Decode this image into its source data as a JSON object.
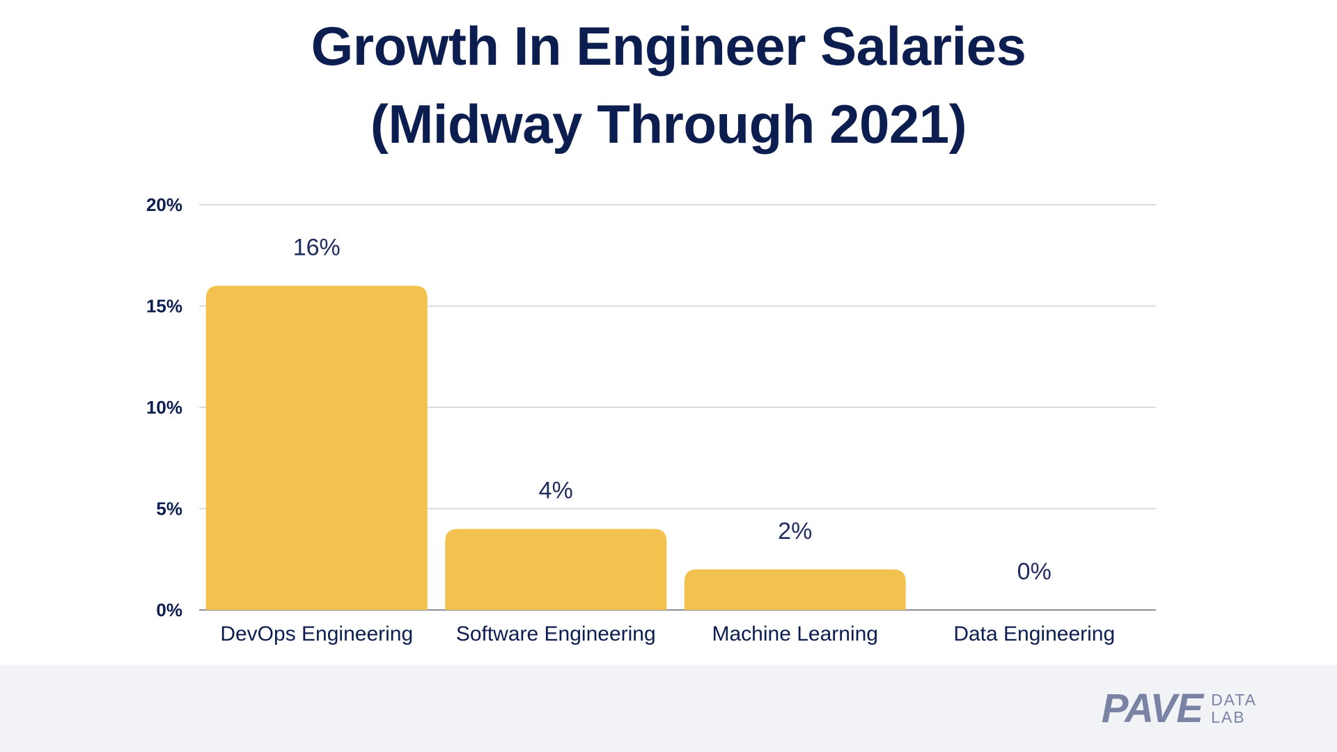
{
  "title_line1": "Growth In Engineer Salaries",
  "title_line2": "(Midway Through 2021)",
  "chart_data": {
    "type": "bar",
    "title": "Growth In Engineer Salaries (Midway Through 2021)",
    "categories": [
      "DevOps Engineering",
      "Software Engineering",
      "Machine Learning",
      "Data Engineering"
    ],
    "values": [
      16,
      4,
      2,
      0
    ],
    "data_labels": [
      "16%",
      "4%",
      "2%",
      "0%"
    ],
    "ylim": [
      0,
      20
    ],
    "yticks": [
      0,
      5,
      10,
      15,
      20
    ],
    "ytick_labels": [
      "0%",
      "5%",
      "10%",
      "15%",
      "20%"
    ],
    "grid": true,
    "bar_color": "#f2c14e"
  },
  "logo": {
    "main": "PAVE",
    "sub_line1": "DATA",
    "sub_line2": "LAB"
  },
  "colors": {
    "title": "#0c1e4f",
    "footer_bg": "#f2f3f7",
    "logo": "#7a83a3",
    "grid": "#dcdcdc"
  }
}
